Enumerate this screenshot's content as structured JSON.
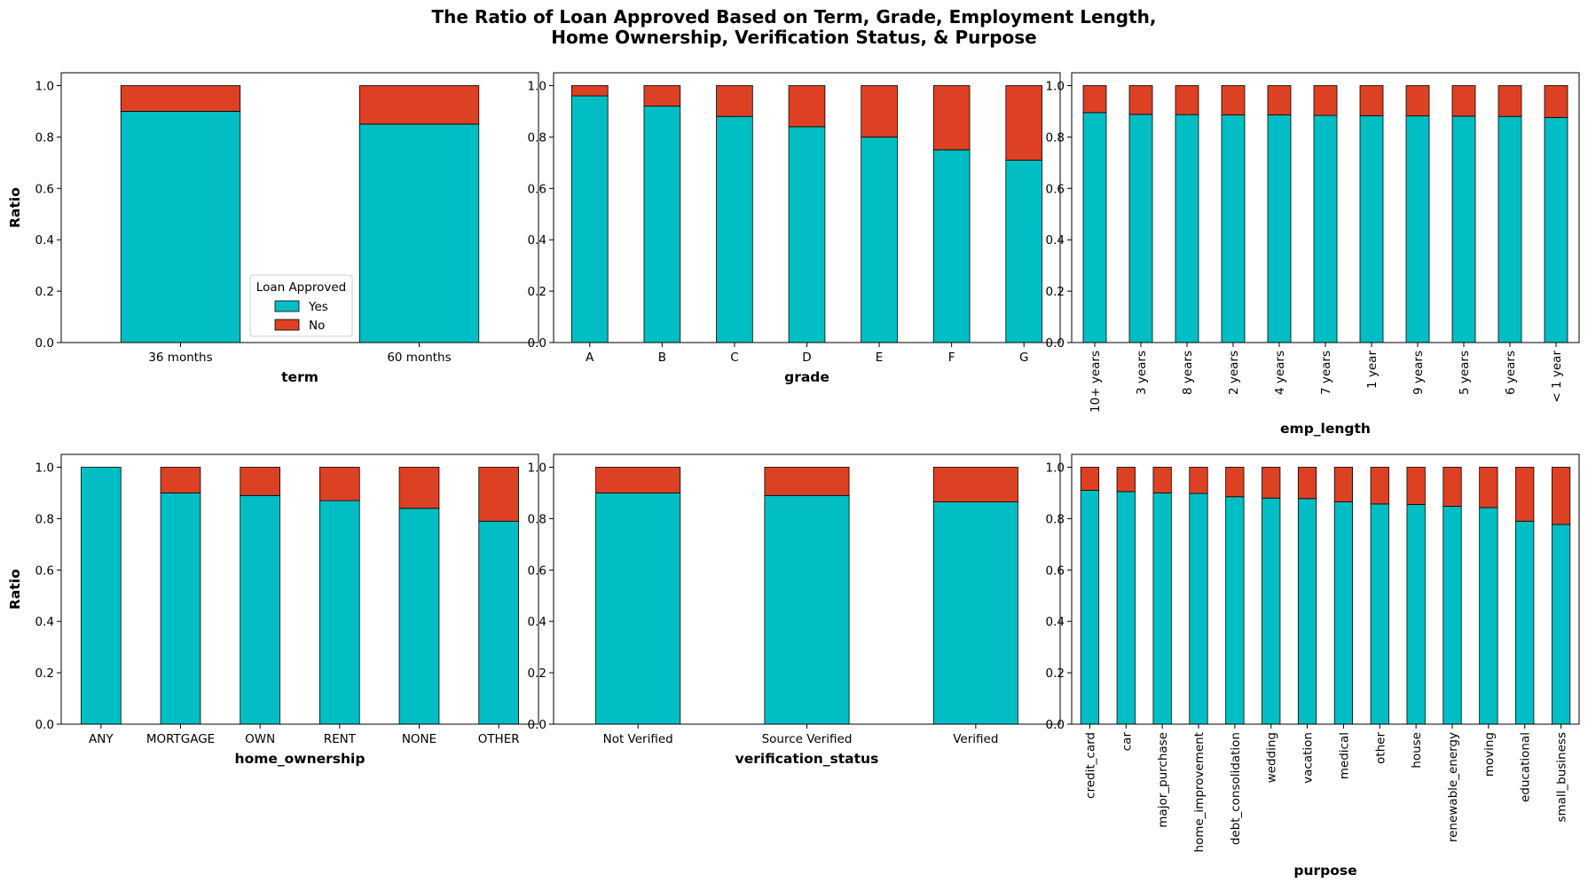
{
  "figure": {
    "title_line1": "The Ratio of Loan Approved Based on Term, Grade, Employment Length,",
    "title_line2": "Home Ownership, Verification Status, & Purpose"
  },
  "colors": {
    "yes": "#00BEC3",
    "no": "#DD4124",
    "edge": "#000000"
  },
  "legend": {
    "title": "Loan Approved",
    "labels": [
      "Yes",
      "No"
    ],
    "placement": "lower center",
    "panel": 0
  },
  "chart_data": [
    {
      "type": "bar",
      "stacked": true,
      "xlabel": "term",
      "ylabel": "Ratio",
      "ylim": [
        0,
        1.05
      ],
      "yticks": [
        "0.0",
        "0.2",
        "0.4",
        "0.6",
        "0.8",
        "1.0"
      ],
      "categories": [
        "36 months",
        "60 months"
      ],
      "rotate_labels": false,
      "series": [
        {
          "name": "Yes",
          "values": [
            0.9,
            0.85
          ]
        },
        {
          "name": "No",
          "values": [
            0.1,
            0.15
          ]
        }
      ]
    },
    {
      "type": "bar",
      "stacked": true,
      "xlabel": "grade",
      "ylabel": "",
      "ylim": [
        0,
        1.05
      ],
      "yticks": [
        "0.0",
        "0.2",
        "0.4",
        "0.6",
        "0.8",
        "1.0"
      ],
      "categories": [
        "A",
        "B",
        "C",
        "D",
        "E",
        "F",
        "G"
      ],
      "rotate_labels": false,
      "series": [
        {
          "name": "Yes",
          "values": [
            0.96,
            0.92,
            0.88,
            0.84,
            0.8,
            0.75,
            0.71
          ]
        },
        {
          "name": "No",
          "values": [
            0.04,
            0.08,
            0.12,
            0.16,
            0.2,
            0.25,
            0.29
          ]
        }
      ]
    },
    {
      "type": "bar",
      "stacked": true,
      "xlabel": "emp_length",
      "ylabel": "",
      "ylim": [
        0,
        1.05
      ],
      "yticks": [
        "0.0",
        "0.2",
        "0.4",
        "0.6",
        "0.8",
        "1.0"
      ],
      "categories": [
        "10+ years",
        "3 years",
        "8 years",
        "2 years",
        "4 years",
        "7 years",
        "1 year",
        "9 years",
        "5 years",
        "6 years",
        "< 1 year"
      ],
      "rotate_labels": true,
      "series": [
        {
          "name": "Yes",
          "values": [
            0.895,
            0.888,
            0.887,
            0.886,
            0.886,
            0.884,
            0.883,
            0.882,
            0.881,
            0.88,
            0.876
          ]
        },
        {
          "name": "No",
          "values": [
            0.105,
            0.112,
            0.113,
            0.114,
            0.114,
            0.116,
            0.117,
            0.118,
            0.119,
            0.12,
            0.124
          ]
        }
      ]
    },
    {
      "type": "bar",
      "stacked": true,
      "xlabel": "home_ownership",
      "ylabel": "Ratio",
      "ylim": [
        0,
        1.05
      ],
      "yticks": [
        "0.0",
        "0.2",
        "0.4",
        "0.6",
        "0.8",
        "1.0"
      ],
      "categories": [
        "ANY",
        "MORTGAGE",
        "OWN",
        "RENT",
        "NONE",
        "OTHER"
      ],
      "rotate_labels": false,
      "series": [
        {
          "name": "Yes",
          "values": [
            1.0,
            0.9,
            0.89,
            0.87,
            0.84,
            0.79
          ]
        },
        {
          "name": "No",
          "values": [
            0.0,
            0.1,
            0.11,
            0.13,
            0.16,
            0.21
          ]
        }
      ]
    },
    {
      "type": "bar",
      "stacked": true,
      "xlabel": "verification_status",
      "ylabel": "",
      "ylim": [
        0,
        1.05
      ],
      "yticks": [
        "0.0",
        "0.2",
        "0.4",
        "0.6",
        "0.8",
        "1.0"
      ],
      "categories": [
        "Not Verified",
        "Source Verified",
        "Verified"
      ],
      "rotate_labels": false,
      "series": [
        {
          "name": "Yes",
          "values": [
            0.9,
            0.89,
            0.865
          ]
        },
        {
          "name": "No",
          "values": [
            0.1,
            0.11,
            0.135
          ]
        }
      ]
    },
    {
      "type": "bar",
      "stacked": true,
      "xlabel": "purpose",
      "ylabel": "",
      "ylim": [
        0,
        1.05
      ],
      "yticks": [
        "0.0",
        "0.2",
        "0.4",
        "0.6",
        "0.8",
        "1.0"
      ],
      "categories": [
        "credit_card",
        "car",
        "major_purchase",
        "home_improvement",
        "debt_consolidation",
        "wedding",
        "vacation",
        "medical",
        "other",
        "house",
        "renewable_energy",
        "moving",
        "educational",
        "small_business"
      ],
      "rotate_labels": true,
      "series": [
        {
          "name": "Yes",
          "values": [
            0.91,
            0.905,
            0.9,
            0.898,
            0.885,
            0.88,
            0.878,
            0.865,
            0.857,
            0.855,
            0.848,
            0.843,
            0.79,
            0.777
          ]
        },
        {
          "name": "No",
          "values": [
            0.09,
            0.095,
            0.1,
            0.102,
            0.115,
            0.12,
            0.122,
            0.135,
            0.143,
            0.145,
            0.152,
            0.157,
            0.21,
            0.223
          ]
        }
      ]
    }
  ]
}
